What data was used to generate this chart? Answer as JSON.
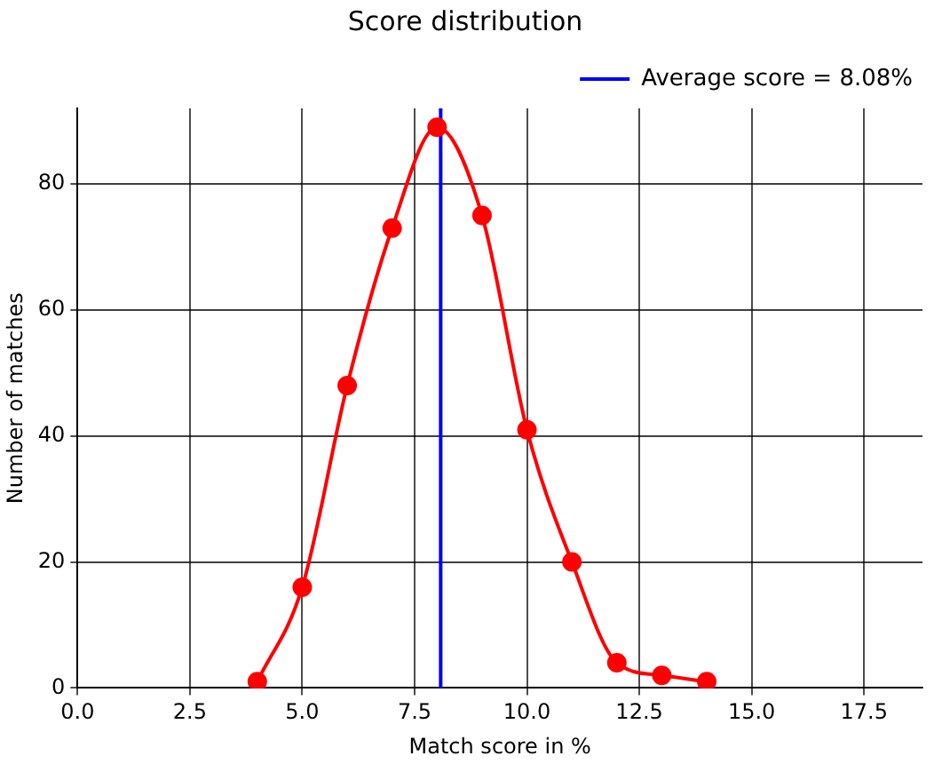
{
  "chart_data": {
    "type": "line",
    "title": "Score distribution",
    "xlabel": "Match score in %",
    "ylabel": "Number of matches",
    "x": [
      4,
      5,
      6,
      7,
      8,
      9,
      10,
      11,
      12,
      13,
      14
    ],
    "series": [
      {
        "color": "#ff0000",
        "values": [
          1,
          16,
          48,
          73,
          89,
          75,
          41,
          20,
          4,
          2,
          1
        ]
      }
    ],
    "xlim": [
      0,
      18.8
    ],
    "xticks": [
      {
        "value": 0,
        "label": "0.0"
      },
      2.5,
      {
        "value": 5,
        "label": "5.0"
      },
      7.5,
      {
        "value": 10,
        "label": "10.0"
      },
      12.5,
      {
        "value": 15,
        "label": "15.0"
      },
      17.5
    ],
    "ylim": [
      0,
      92
    ],
    "yticks": [
      0,
      20,
      40,
      60,
      80
    ],
    "ref_lines": [
      {
        "axis": "x",
        "value": 8.08,
        "label": "Average score = 8.08%",
        "color": "#0000ff"
      }
    ],
    "grid": true,
    "legend": "top right",
    "marker": "circle",
    "line_style": "solid"
  }
}
